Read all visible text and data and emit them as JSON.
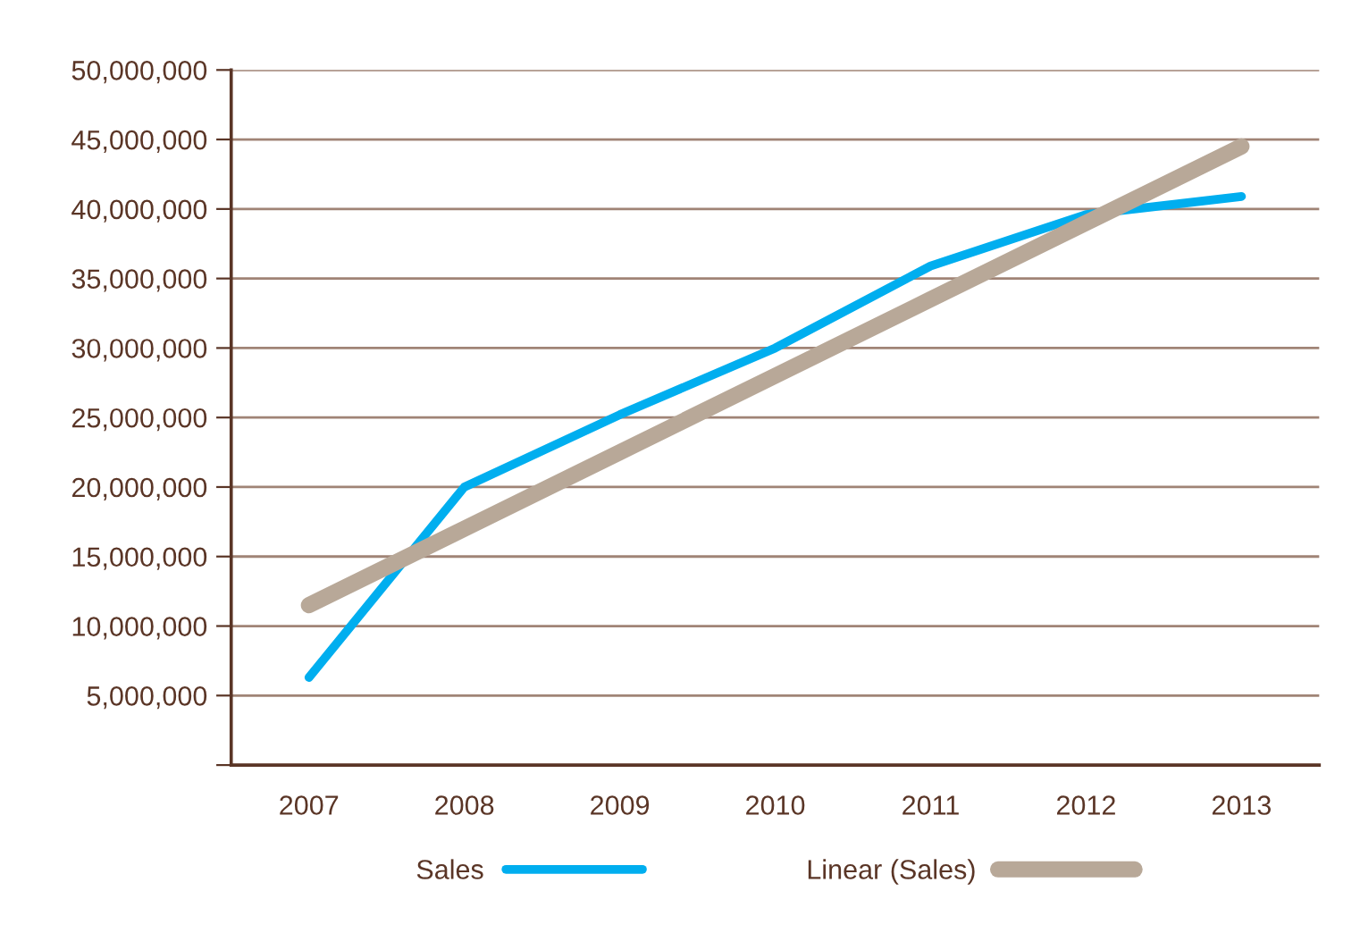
{
  "chart_data": {
    "type": "line",
    "categories": [
      "2007",
      "2008",
      "2009",
      "2010",
      "2011",
      "2012",
      "2013"
    ],
    "series": [
      {
        "name": "Sales",
        "color": "#00aeef",
        "values": [
          6300000,
          20000000,
          25200000,
          30000000,
          35900000,
          39600000,
          40900000
        ]
      },
      {
        "name": "Linear (Sales)",
        "color": "#b8a898",
        "values": [
          11500000,
          17000000,
          22500000,
          28000000,
          33500000,
          39000000,
          44500000
        ]
      }
    ],
    "ylim": [
      0,
      50000000
    ],
    "yticks": [
      {
        "value": 0,
        "label": null
      },
      {
        "value": 5000000,
        "label": "5,000,000"
      },
      {
        "value": 10000000,
        "label": "10,000,000"
      },
      {
        "value": 15000000,
        "label": "15,000,000"
      },
      {
        "value": 20000000,
        "label": "20,000,000"
      },
      {
        "value": 25000000,
        "label": "25,000,000"
      },
      {
        "value": 30000000,
        "label": "30,000,000"
      },
      {
        "value": 35000000,
        "label": "35,000,000"
      },
      {
        "value": 40000000,
        "label": "40,000,000"
      },
      {
        "value": 45000000,
        "label": "45,000,000"
      },
      {
        "value": 50000000,
        "label": "50,000,000"
      }
    ],
    "grid": "y",
    "legend": "bottom",
    "marker": "none",
    "line_style": "solid"
  }
}
